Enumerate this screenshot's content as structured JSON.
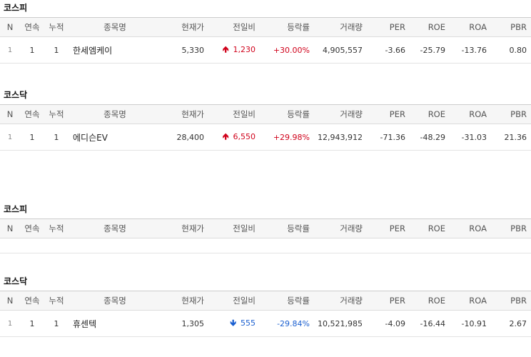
{
  "columns": [
    "N",
    "연속",
    "누적",
    "종목명",
    "현재가",
    "전일비",
    "등락률",
    "거래량",
    "PER",
    "ROE",
    "ROA",
    "PBR"
  ],
  "sections": [
    {
      "title": "코스피",
      "rows": [
        {
          "n": "1",
          "consecutive": "1",
          "cumulative": "1",
          "name": "한세엠케이",
          "price": "5,330",
          "direction": "up",
          "arrow_icon": "arrow-up-icon",
          "change": "1,230",
          "rate": "+30.00%",
          "volume": "4,905,557",
          "per": "-3.66",
          "roe": "-25.79",
          "roa": "-13.76",
          "pbr": "0.80"
        }
      ]
    },
    {
      "title": "코스닥",
      "rows": [
        {
          "n": "1",
          "consecutive": "1",
          "cumulative": "1",
          "name": "에디슨EV",
          "price": "28,400",
          "direction": "up",
          "arrow_icon": "arrow-up-icon",
          "change": "6,550",
          "rate": "+29.98%",
          "volume": "12,943,912",
          "per": "-71.36",
          "roe": "-48.29",
          "roa": "-31.03",
          "pbr": "21.36"
        }
      ]
    },
    {
      "title": "코스피",
      "rows": []
    },
    {
      "title": "코스닥",
      "rows": [
        {
          "n": "1",
          "consecutive": "1",
          "cumulative": "1",
          "name": "휴센텍",
          "price": "1,305",
          "direction": "down",
          "arrow_icon": "arrow-down-icon",
          "change": "555",
          "rate": "-29.84%",
          "volume": "10,521,985",
          "per": "-4.09",
          "roe": "-16.44",
          "roa": "-10.91",
          "pbr": "2.67"
        }
      ]
    }
  ],
  "colors": {
    "up": "#d0021b",
    "down": "#1a5fd0"
  }
}
